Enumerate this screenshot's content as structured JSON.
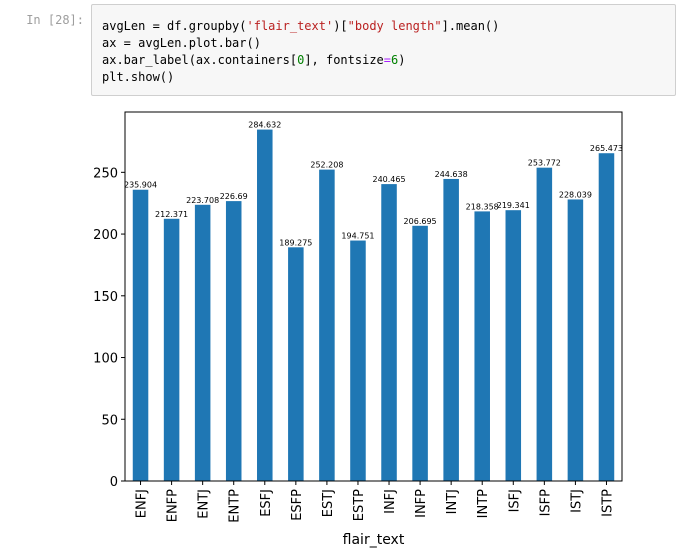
{
  "cell": {
    "prompt": "In [28]:",
    "code": {
      "line1": {
        "a": "avgLen = df.groupby(",
        "s1": "'flair_text'",
        "b": ")[",
        "s2": "\"body length\"",
        "c": "].mean()"
      },
      "line2": {
        "a": "ax = avgLen.plot.bar()"
      },
      "line3": {
        "a": "ax.bar_label(ax.containers[",
        "n1": "0",
        "b": "], fontsize",
        "op": "=",
        "n2": "6",
        "c": ")"
      },
      "line4": {
        "a": "plt.show()"
      }
    }
  },
  "colors": {
    "bar": "#1f77b4",
    "code_bg": "#f7f7f7",
    "prompt": "#9e9e9e"
  },
  "chart_data": {
    "type": "bar",
    "categories": [
      "ENFJ",
      "ENFP",
      "ENTJ",
      "ENTP",
      "ESFJ",
      "ESFP",
      "ESTJ",
      "ESTP",
      "INFJ",
      "INFP",
      "INTJ",
      "INTP",
      "ISFJ",
      "ISFP",
      "ISTJ",
      "ISTP"
    ],
    "values": [
      235.904,
      212.371,
      223.708,
      226.69,
      284.632,
      189.275,
      252.208,
      194.751,
      240.465,
      206.695,
      244.638,
      218.358,
      219.341,
      253.772,
      228.039,
      265.473
    ],
    "value_labels": [
      "235.904",
      "212.371",
      "223.708",
      "226.69",
      "284.632",
      "189.275",
      "252.208",
      "194.751",
      "240.465",
      "206.695",
      "244.638",
      "218.358",
      "219.341",
      "253.772",
      "228.039",
      "265.473"
    ],
    "xlabel": "flair_text",
    "ylabel": "",
    "ylim": [
      0,
      298.86
    ],
    "yticks": [
      0,
      50,
      100,
      150,
      200,
      250
    ],
    "grid": false
  }
}
